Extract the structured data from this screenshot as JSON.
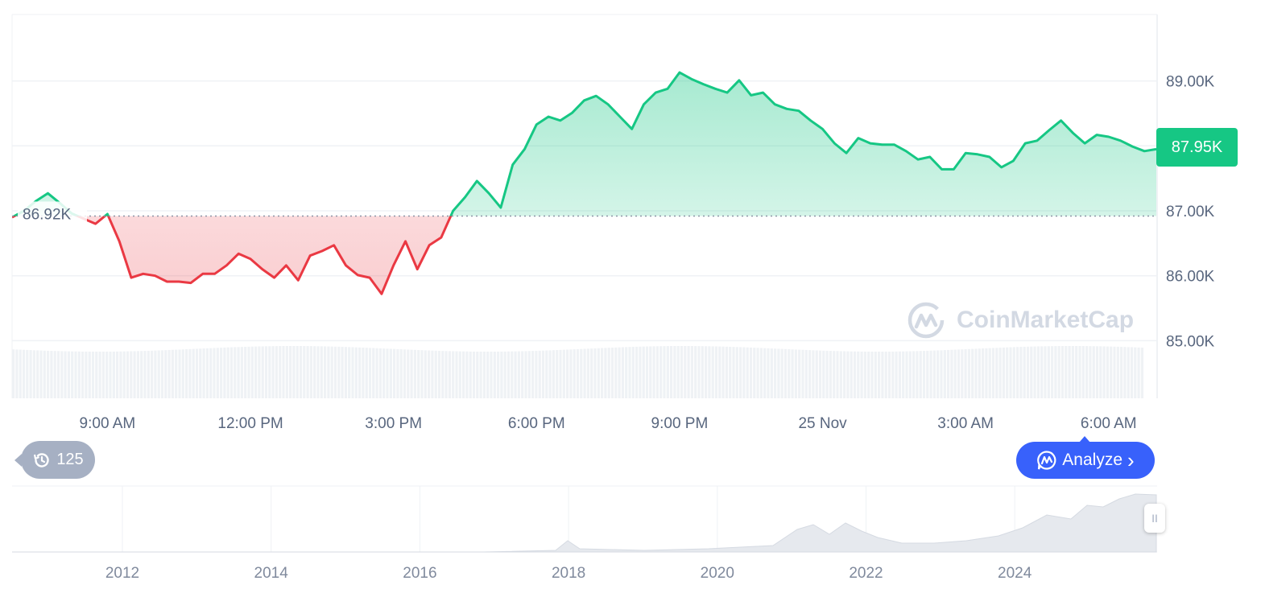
{
  "chart_data": {
    "type": "line",
    "title": "",
    "xlabel": "",
    "ylabel": "",
    "x_range": [
      "24 Nov 07:00",
      "25 Nov 07:00"
    ],
    "interval_minutes": 15,
    "ylim": [
      84.9,
      90.0
    ],
    "y_unit": "K",
    "y_ticks": [
      "89.00K",
      "87.00K",
      "86.00K",
      "85.00K"
    ],
    "x_ticks": [
      {
        "label": "9:00 AM",
        "hour": 9
      },
      {
        "label": "12:00 PM",
        "hour": 12
      },
      {
        "label": "3:00 PM",
        "hour": 15
      },
      {
        "label": "6:00 PM",
        "hour": 18
      },
      {
        "label": "9:00 PM",
        "hour": 21
      },
      {
        "label": "25 Nov",
        "hour": 24
      },
      {
        "label": "3:00 AM",
        "hour": 27
      },
      {
        "label": "6:00 AM",
        "hour": 30
      }
    ],
    "reference_value": 86.92,
    "reference_label": "86.92K",
    "current_value": 87.95,
    "current_label": "87.95K",
    "values": [
      86.9,
      87.0,
      87.15,
      87.27,
      87.12,
      86.96,
      86.88,
      86.8,
      86.95,
      86.53,
      85.97,
      86.03,
      86.0,
      85.91,
      85.91,
      85.89,
      86.03,
      86.03,
      86.16,
      86.34,
      86.26,
      86.1,
      85.97,
      86.16,
      85.93,
      86.31,
      86.38,
      86.47,
      86.16,
      86.01,
      85.97,
      85.72,
      86.16,
      86.53,
      86.1,
      86.47,
      86.59,
      87.0,
      87.21,
      87.46,
      87.27,
      87.05,
      87.71,
      87.95,
      88.33,
      88.45,
      88.39,
      88.51,
      88.7,
      88.77,
      88.64,
      88.45,
      88.26,
      88.64,
      88.82,
      88.88,
      89.13,
      89.03,
      88.95,
      88.88,
      88.82,
      89.01,
      88.78,
      88.82,
      88.64,
      88.57,
      88.54,
      88.39,
      88.26,
      88.04,
      87.89,
      88.12,
      88.04,
      88.02,
      88.02,
      87.92,
      87.79,
      87.83,
      87.64,
      87.64,
      87.89,
      87.87,
      87.83,
      87.67,
      87.77,
      88.04,
      88.08,
      88.24,
      88.39,
      88.2,
      88.04,
      88.17,
      88.14,
      88.08,
      87.99,
      87.92,
      87.95
    ],
    "grid": true,
    "colors": {
      "up": "#16c784",
      "down": "#ea3943",
      "grid": "#eff2f5",
      "volume": "#eff2f5"
    },
    "navigator": {
      "x_ticks": [
        "2012",
        "2014",
        "2016",
        "2018",
        "2020",
        "2022",
        "2024"
      ]
    }
  },
  "history_badge": {
    "icon": "history-icon",
    "count": "125"
  },
  "analyze_button": {
    "icon": "coinmarketcap-chat-icon",
    "label": "Analyze",
    "chevron": "›"
  },
  "watermark": "CoinMarketCap",
  "navigator_handle": "II"
}
